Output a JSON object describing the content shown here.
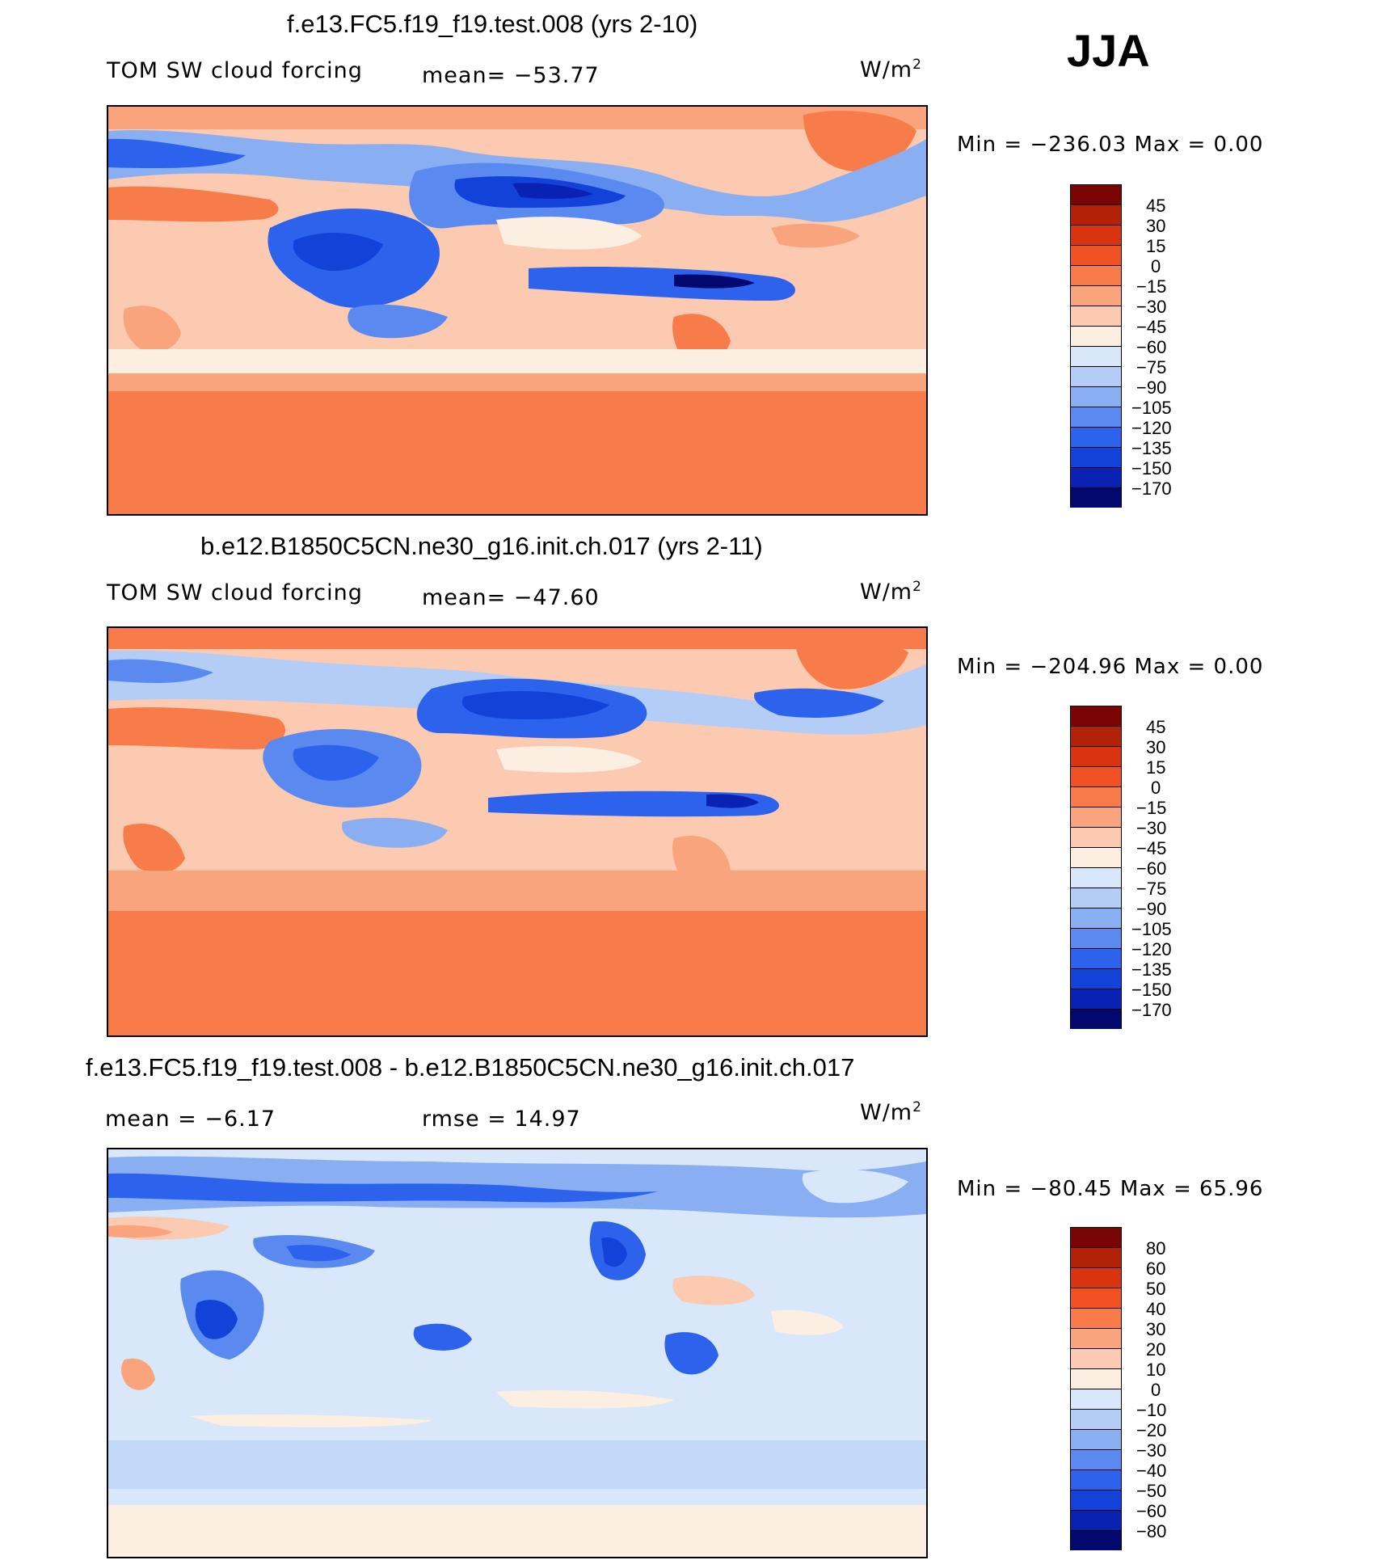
{
  "season": "JJA",
  "panels": [
    {
      "title": "f.e13.FC5.f19_f19.test.008 (yrs 2-10)",
      "variable": "TOM SW cloud forcing",
      "stat_text": "mean=  −53.77",
      "units": "W/m",
      "units_sup": "2",
      "minmax": "Min  =  −236.03  Max  =      0.00",
      "ticks": [
        "45",
        "30",
        "15",
        "0",
        "−15",
        "−30",
        "−45",
        "−60",
        "−75",
        "−90",
        "−105",
        "−120",
        "−135",
        "−150",
        "−170"
      ]
    },
    {
      "title": "b.e12.B1850C5CN.ne30_g16.init.ch.017 (yrs 2-11)",
      "variable": "TOM SW cloud forcing",
      "stat_text": "mean=  −47.60",
      "units": "W/m",
      "units_sup": "2",
      "minmax": "Min  =  −204.96  Max  =      0.00",
      "ticks": [
        "45",
        "30",
        "15",
        "0",
        "−15",
        "−30",
        "−45",
        "−60",
        "−75",
        "−90",
        "−105",
        "−120",
        "−135",
        "−150",
        "−170"
      ]
    },
    {
      "title": "f.e13.FC5.f19_f19.test.008 - b.e12.B1850C5CN.ne30_g16.init.ch.017",
      "variable": "mean  =    −6.17",
      "stat_text": "rmse  =    14.97",
      "units": "W/m",
      "units_sup": "2",
      "minmax": "Min  =  −80.45  Max  =    65.96",
      "ticks": [
        "80",
        "60",
        "50",
        "40",
        "30",
        "20",
        "10",
        "0",
        "−10",
        "−20",
        "−30",
        "−40",
        "−50",
        "−60",
        "−80"
      ]
    }
  ],
  "colors": {
    "palette": [
      "#7a0403",
      "#b32107",
      "#d83410",
      "#f05022",
      "#f77c4a",
      "#f9a47c",
      "#fbcab0",
      "#fdeee2",
      "#d8e8fa",
      "#b4cdf6",
      "#8aaef2",
      "#5a8af0",
      "#2c62ec",
      "#1342d8",
      "#0a22b4",
      "#02086e"
    ]
  },
  "chart_data": [
    {
      "type": "heatmap",
      "title": "f.e13.FC5.f19_f19.test.008 (yrs 2-10)",
      "xlabel": "",
      "ylabel": "",
      "variable": "TOM SW cloud forcing",
      "mean": -53.77,
      "min": -236.03,
      "max": 0.0,
      "units": "W/m2",
      "contour_levels": [
        45,
        30,
        15,
        0,
        -15,
        -30,
        -45,
        -60,
        -75,
        -90,
        -105,
        -120,
        -135,
        -150,
        -170
      ]
    },
    {
      "type": "heatmap",
      "title": "b.e12.B1850C5CN.ne30_g16.init.ch.017 (yrs 2-11)",
      "xlabel": "",
      "ylabel": "",
      "variable": "TOM SW cloud forcing",
      "mean": -47.6,
      "min": -204.96,
      "max": 0.0,
      "units": "W/m2",
      "contour_levels": [
        45,
        30,
        15,
        0,
        -15,
        -30,
        -45,
        -60,
        -75,
        -90,
        -105,
        -120,
        -135,
        -150,
        -170
      ]
    },
    {
      "type": "heatmap",
      "title": "f.e13.FC5.f19_f19.test.008 - b.e12.B1850C5CN.ne30_g16.init.ch.017",
      "xlabel": "",
      "ylabel": "",
      "mean": -6.17,
      "rmse": 14.97,
      "min": -80.45,
      "max": 65.96,
      "units": "W/m2",
      "contour_levels": [
        80,
        60,
        50,
        40,
        30,
        20,
        10,
        0,
        -10,
        -20,
        -30,
        -40,
        -50,
        -60,
        -80
      ]
    }
  ]
}
